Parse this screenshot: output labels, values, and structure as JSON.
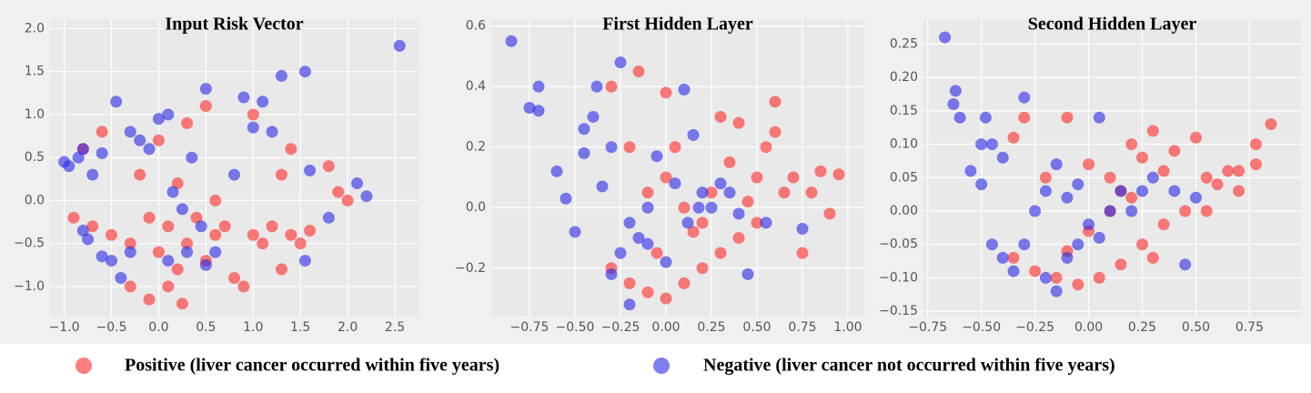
{
  "chart_data": [
    {
      "type": "scatter",
      "title": "Input Risk Vector",
      "xlim": [
        -1.15,
        2.75
      ],
      "ylim": [
        -1.35,
        2.1
      ],
      "xticks": [
        {
          "value": -1.0,
          "label": "−1.0"
        },
        {
          "value": -0.5,
          "label": "−0.5"
        },
        {
          "value": 0,
          "label": "0.0"
        },
        {
          "value": 0.5,
          "label": "0.5"
        },
        {
          "value": 1.0,
          "label": "1.0"
        },
        {
          "value": 1.5,
          "label": "1.5"
        },
        {
          "value": 2.0,
          "label": "2.0"
        },
        {
          "value": 2.5,
          "label": "2.5"
        }
      ],
      "yticks": [
        {
          "value": -1.0,
          "label": "−1.0"
        },
        {
          "value": -0.5,
          "label": "−0.5"
        },
        {
          "value": 0,
          "label": "0.0"
        },
        {
          "value": 0.5,
          "label": "0.5"
        },
        {
          "value": 1.0,
          "label": "1.0"
        },
        {
          "value": 1.5,
          "label": "1.5"
        },
        {
          "value": 2.0,
          "label": "2.0"
        }
      ],
      "grid": true,
      "series": [
        {
          "color": "#ff2a2a",
          "x": [
            -0.9,
            -0.7,
            -0.5,
            -0.3,
            -0.1,
            0.0,
            0.1,
            0.2,
            0.3,
            0.4,
            0.5,
            0.6,
            0.7,
            0.8,
            0.9,
            1.0,
            1.1,
            1.2,
            1.3,
            1.4,
            1.5,
            1.6,
            1.8,
            1.9,
            2.0,
            1.3,
            1.4,
            0.3,
            0.0,
            -0.2,
            0.2,
            0.5,
            -0.6,
            -0.8,
            0.1,
            -0.1,
            0.25,
            0.6,
            1.0,
            -0.3
          ],
          "values": [
            -0.2,
            -0.3,
            -0.4,
            -0.5,
            -0.2,
            -0.6,
            -0.3,
            -0.8,
            -0.5,
            -0.2,
            -0.7,
            -0.4,
            -0.3,
            -0.9,
            -1.0,
            -0.4,
            -0.5,
            -0.3,
            -0.8,
            -0.4,
            -0.5,
            -0.35,
            0.4,
            0.1,
            0.0,
            0.3,
            0.6,
            0.9,
            0.7,
            0.3,
            0.2,
            1.1,
            0.8,
            0.6,
            -1.0,
            -1.15,
            -1.2,
            0.0,
            1.0,
            -1.0
          ]
        },
        {
          "color": "#2828e6",
          "x": [
            -1.0,
            -0.95,
            -0.85,
            -0.8,
            -0.7,
            -0.6,
            -0.8,
            -0.75,
            -0.6,
            -0.5,
            -0.4,
            -0.3,
            -0.2,
            -0.1,
            0.0,
            0.1,
            0.15,
            0.25,
            0.3,
            0.35,
            0.5,
            0.5,
            0.6,
            0.8,
            0.9,
            1.0,
            1.1,
            1.2,
            1.3,
            1.55,
            1.6,
            1.55,
            1.8,
            2.1,
            2.2,
            2.55,
            -0.45,
            0.1,
            -0.3,
            0.45
          ],
          "values": [
            0.45,
            0.4,
            0.5,
            0.6,
            0.3,
            0.55,
            -0.35,
            -0.45,
            -0.65,
            -0.7,
            -0.9,
            0.8,
            0.7,
            0.6,
            0.95,
            1.0,
            0.1,
            -0.1,
            -0.6,
            0.5,
            1.3,
            -0.75,
            -0.6,
            0.3,
            1.2,
            0.85,
            1.15,
            0.8,
            1.45,
            1.5,
            0.35,
            -0.7,
            -0.2,
            0.2,
            0.05,
            1.8,
            1.15,
            -0.7,
            -0.6,
            -0.3
          ]
        }
      ]
    },
    {
      "type": "scatter",
      "title": "First Hidden Layer",
      "xlim": [
        -0.96,
        1.09
      ],
      "ylim": [
        -0.36,
        0.62
      ],
      "xticks": [
        {
          "value": -0.75,
          "label": "−0.75"
        },
        {
          "value": -0.5,
          "label": "−0.50"
        },
        {
          "value": -0.25,
          "label": "−0.25"
        },
        {
          "value": 0,
          "label": "0.00"
        },
        {
          "value": 0.25,
          "label": "0.25"
        },
        {
          "value": 0.5,
          "label": "0.50"
        },
        {
          "value": 0.75,
          "label": "0.75"
        },
        {
          "value": 1.0,
          "label": "1.00"
        }
      ],
      "yticks": [
        {
          "value": -0.2,
          "label": "−0.2"
        },
        {
          "value": 0,
          "label": "0.0"
        },
        {
          "value": 0.2,
          "label": "0.2"
        },
        {
          "value": 0.4,
          "label": "0.4"
        },
        {
          "value": 0.6,
          "label": "0.6"
        }
      ],
      "grid": true,
      "series": [
        {
          "color": "#ff2a2a",
          "x": [
            -0.3,
            -0.15,
            0.0,
            -0.2,
            0.0,
            0.1,
            0.2,
            0.25,
            0.3,
            0.35,
            0.4,
            0.5,
            0.55,
            0.6,
            0.65,
            0.7,
            0.75,
            0.85,
            0.95,
            0.9,
            0.8,
            0.5,
            0.4,
            0.3,
            0.2,
            0.1,
            0.0,
            -0.1,
            -0.2,
            -0.05,
            0.15,
            -0.1,
            0.05,
            0.45,
            -0.3,
            0.6
          ],
          "values": [
            0.4,
            0.45,
            0.38,
            0.2,
            0.1,
            0.0,
            -0.05,
            0.05,
            0.3,
            0.15,
            0.28,
            0.1,
            0.2,
            0.25,
            0.05,
            0.1,
            -0.15,
            0.12,
            0.11,
            -0.02,
            0.05,
            -0.05,
            -0.1,
            -0.15,
            -0.2,
            -0.25,
            -0.3,
            -0.28,
            -0.25,
            -0.15,
            -0.08,
            0.05,
            0.2,
            0.02,
            -0.2,
            0.35
          ]
        },
        {
          "color": "#2828e6",
          "x": [
            -0.85,
            -0.7,
            -0.75,
            -0.7,
            -0.6,
            -0.55,
            -0.5,
            -0.45,
            -0.4,
            -0.38,
            -0.25,
            -0.3,
            -0.35,
            -0.2,
            -0.25,
            -0.3,
            -0.15,
            -0.1,
            0.0,
            0.05,
            0.1,
            0.15,
            0.2,
            0.25,
            0.3,
            0.35,
            0.4,
            0.45,
            0.55,
            0.75,
            -0.05,
            -0.2,
            -0.45,
            0.12,
            0.18,
            -0.1
          ],
          "values": [
            0.55,
            0.4,
            0.33,
            0.32,
            0.12,
            0.03,
            -0.08,
            0.26,
            0.3,
            0.4,
            0.48,
            0.2,
            0.07,
            -0.05,
            -0.15,
            -0.22,
            -0.1,
            -0.12,
            -0.18,
            0.08,
            0.39,
            0.24,
            0.05,
            0.0,
            0.08,
            0.05,
            -0.02,
            -0.22,
            -0.05,
            -0.07,
            0.17,
            -0.32,
            0.18,
            -0.05,
            0.0,
            0.0
          ]
        }
      ]
    },
    {
      "type": "scatter",
      "title": "Second Hidden Layer",
      "xlim": [
        -0.77,
        0.99
      ],
      "ylim": [
        -0.158,
        0.286
      ],
      "xticks": [
        {
          "value": -0.75,
          "label": "−0.75"
        },
        {
          "value": -0.5,
          "label": "−0.50"
        },
        {
          "value": -0.25,
          "label": "−0.25"
        },
        {
          "value": 0,
          "label": "0.00"
        },
        {
          "value": 0.25,
          "label": "0.25"
        },
        {
          "value": 0.5,
          "label": "0.50"
        },
        {
          "value": 0.75,
          "label": "0.75"
        }
      ],
      "yticks": [
        {
          "value": -0.15,
          "label": "−0.15"
        },
        {
          "value": -0.1,
          "label": "−0.10"
        },
        {
          "value": -0.05,
          "label": "−0.05"
        },
        {
          "value": 0,
          "label": "0.00"
        },
        {
          "value": 0.05,
          "label": "0.05"
        },
        {
          "value": 0.1,
          "label": "0.10"
        },
        {
          "value": 0.15,
          "label": "0.15"
        },
        {
          "value": 0.2,
          "label": "0.20"
        },
        {
          "value": 0.25,
          "label": "0.25"
        }
      ],
      "grid": true,
      "series": [
        {
          "color": "#ff2a2a",
          "x": [
            -0.35,
            -0.3,
            -0.1,
            0.0,
            0.1,
            0.2,
            0.25,
            0.3,
            0.35,
            0.4,
            0.5,
            0.55,
            0.6,
            0.65,
            0.7,
            0.78,
            0.78,
            0.85,
            0.7,
            0.45,
            0.35,
            0.25,
            0.15,
            0.05,
            -0.05,
            -0.15,
            -0.25,
            -0.35,
            0.1,
            0.2,
            0.0,
            -0.1,
            0.3,
            0.55,
            0.15,
            -0.2
          ],
          "values": [
            0.11,
            0.14,
            0.14,
            0.07,
            0.05,
            0.1,
            0.08,
            0.12,
            0.06,
            0.09,
            0.11,
            0.05,
            0.04,
            0.06,
            0.06,
            0.1,
            0.07,
            0.13,
            0.03,
            0.0,
            -0.02,
            -0.05,
            -0.08,
            -0.1,
            -0.11,
            -0.1,
            -0.09,
            -0.07,
            0.0,
            0.02,
            -0.03,
            -0.06,
            -0.07,
            0.0,
            0.03,
            0.05
          ]
        },
        {
          "color": "#2828e6",
          "x": [
            -0.67,
            -0.62,
            -0.63,
            -0.6,
            -0.55,
            -0.5,
            -0.45,
            -0.5,
            -0.48,
            -0.4,
            -0.3,
            -0.45,
            -0.4,
            -0.35,
            -0.3,
            -0.2,
            -0.15,
            -0.1,
            -0.05,
            0.05,
            -0.1,
            0.0,
            0.1,
            0.15,
            0.2,
            0.25,
            0.3,
            0.45,
            0.5,
            -0.25,
            -0.15,
            0.05,
            -0.05,
            -0.2,
            0.4
          ],
          "values": [
            0.26,
            0.18,
            0.16,
            0.14,
            0.06,
            0.04,
            0.1,
            0.1,
            0.14,
            0.08,
            0.17,
            -0.05,
            -0.07,
            -0.09,
            -0.05,
            -0.1,
            -0.12,
            -0.07,
            0.04,
            0.14,
            0.02,
            -0.02,
            0.0,
            0.03,
            0.0,
            0.03,
            0.05,
            -0.08,
            0.02,
            0.0,
            0.07,
            -0.04,
            -0.05,
            0.03,
            0.03
          ]
        }
      ]
    }
  ],
  "legend": {
    "entries": [
      {
        "name": "Positive (liver cancer occurred within five years)",
        "color": "#ff2a2a"
      },
      {
        "name": "Negative (liver cancer not occurred within five years)",
        "color": "#2828e6"
      }
    ]
  }
}
